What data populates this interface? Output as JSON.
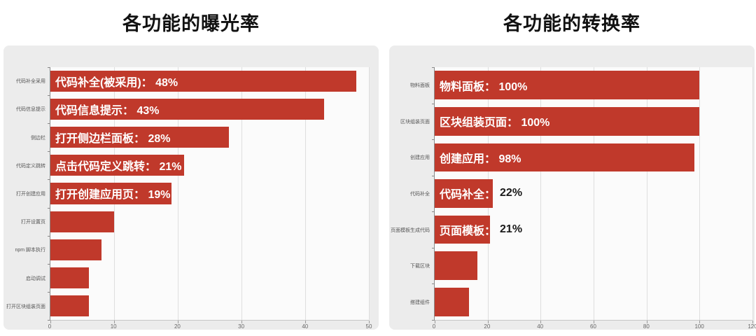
{
  "colors": {
    "bar": "#c0392b",
    "panel_bg": "#ececec",
    "plot_bg": "#fbfbfb",
    "grid": "#dedede",
    "axis": "#8a8a8a",
    "tick_label": "#666666",
    "annotation_inside": "#ffffff",
    "annotation_outside": "#1a1a1a",
    "title": "#111111"
  },
  "chart_data": [
    {
      "type": "bar",
      "orientation": "horizontal",
      "title": "各功能的曝光率",
      "xlabel": "",
      "ylabel": "",
      "grid": true,
      "legend": false,
      "xlim": [
        0,
        50
      ],
      "x_ticks": [
        0,
        10,
        20,
        30,
        40,
        50
      ],
      "categories": [
        "代码补全采用",
        "代码信息提示",
        "侧边栏",
        "代码定义跳转",
        "打开创建应用",
        "打开设置页",
        "npm 脚本执行",
        "启动调试",
        "打开区块组装页面"
      ],
      "values": [
        48,
        43,
        28,
        21,
        19,
        10,
        8,
        6,
        6
      ],
      "annotations": [
        {
          "inside": "代码补全(被采用)： 48%",
          "outside": ""
        },
        {
          "inside": "代码信息提示： 43%",
          "outside": ""
        },
        {
          "inside": "打开侧边栏面板： 28%",
          "outside": ""
        },
        {
          "inside": "点击代码定义跳转： 21%",
          "outside": ""
        },
        {
          "inside": "打开创建应用页： 19%",
          "outside": ""
        },
        null,
        null,
        null,
        null
      ],
      "bar_color": "#c0392b"
    },
    {
      "type": "bar",
      "orientation": "horizontal",
      "title": "各功能的转换率",
      "xlabel": "",
      "ylabel": "",
      "grid": true,
      "legend": false,
      "xlim": [
        0,
        120
      ],
      "x_ticks": [
        0,
        20,
        40,
        60,
        80,
        100,
        120
      ],
      "categories": [
        "物料面板",
        "区块组装页面",
        "创建应用",
        "代码补全",
        "页面模板生成代码",
        "下载区块",
        "搭建组件"
      ],
      "values": [
        100,
        100,
        98,
        22,
        21,
        16,
        13
      ],
      "annotations": [
        {
          "inside": "物料面板： 100%",
          "outside": ""
        },
        {
          "inside": "区块组装页面： 100%",
          "outside": ""
        },
        {
          "inside": "创建应用： 98%",
          "outside": ""
        },
        {
          "inside": "代码补全：",
          "outside": "22%"
        },
        {
          "inside": "页面模板：",
          "outside": "21%"
        },
        null,
        null
      ],
      "bar_color": "#c0392b"
    }
  ]
}
